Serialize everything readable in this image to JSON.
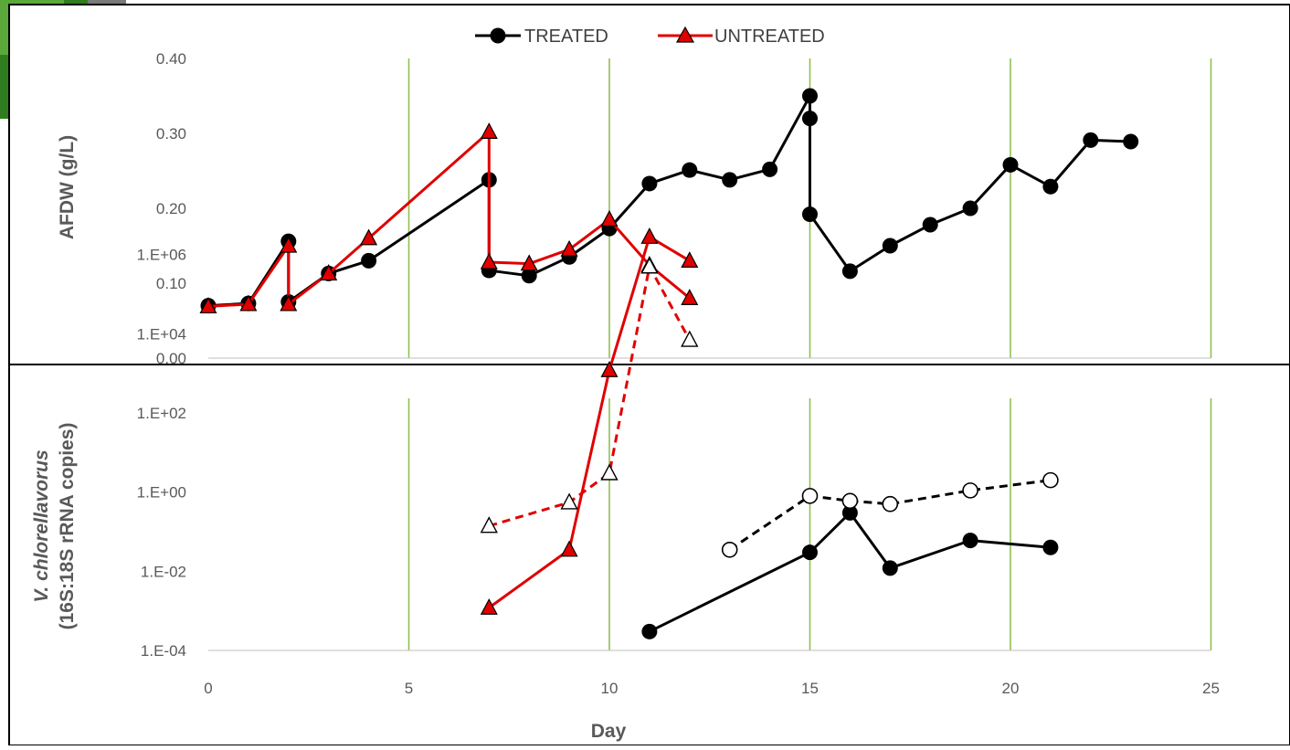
{
  "legend": {
    "treated_label": "TREATED",
    "untreated_label": "UNTREATED"
  },
  "colors": {
    "treated": "#000000",
    "untreated": "#e00000",
    "grid": "#92c050",
    "axis_text": "#595959"
  },
  "chart_data": [
    {
      "type": "line",
      "ylabel": "AFDW (g/L)",
      "xlim": [
        0,
        25
      ],
      "ylim": [
        0,
        0.4
      ],
      "yticks": [
        "0.00",
        "0.10",
        "0.20",
        "0.30",
        "0.40"
      ],
      "vertical_grid_x": [
        5,
        10,
        15,
        20,
        25
      ],
      "series": [
        {
          "name": "TREATED",
          "marker": "circle",
          "x": [
            0,
            1,
            2,
            2,
            3,
            4,
            7,
            7,
            8,
            9,
            10,
            11,
            12,
            13,
            14,
            15,
            15,
            15,
            16,
            17,
            18,
            19,
            20,
            21,
            22,
            23
          ],
          "y": [
            0.07,
            0.073,
            0.156,
            0.075,
            0.113,
            0.13,
            0.238,
            0.117,
            0.11,
            0.135,
            0.173,
            0.233,
            0.251,
            0.238,
            0.252,
            0.35,
            0.32,
            0.192,
            0.116,
            0.15,
            0.178,
            0.2,
            0.258,
            0.229,
            0.291,
            0.289
          ]
        },
        {
          "name": "UNTREATED",
          "marker": "triangle",
          "x": [
            0,
            1,
            2,
            2,
            3,
            4,
            7,
            7,
            8,
            9,
            10,
            11,
            12
          ],
          "y": [
            0.069,
            0.072,
            0.15,
            0.072,
            0.113,
            0.16,
            0.302,
            0.128,
            0.126,
            0.145,
            0.185,
            0.124,
            0.08
          ]
        }
      ]
    },
    {
      "type": "line",
      "ylabel_line1": "V. chlorellavorus",
      "ylabel_line2": "(16S:18S rRNA copies)",
      "xlabel": "Day",
      "yscale": "log",
      "xlim": [
        0,
        25
      ],
      "ylim": [
        0.0001,
        10000000
      ],
      "xticks": [
        "0",
        "5",
        "10",
        "15",
        "20",
        "25"
      ],
      "yticks": [
        "1.E-04",
        "1.E-02",
        "1.E+00",
        "1.E+02",
        "1.E+04",
        "1.E+06"
      ],
      "vertical_grid_x": [
        5,
        10,
        15,
        20,
        25
      ],
      "series": [
        {
          "marker": "triangle",
          "style": "solid",
          "color": "untreated",
          "x": [
            7,
            9,
            10,
            11,
            12
          ],
          "y": [
            0.0012,
            0.035,
            1200,
            2800000,
            700000
          ]
        },
        {
          "marker": "triangle-open",
          "style": "dashed",
          "color": "untreated",
          "x": [
            7,
            9,
            10,
            11,
            12
          ],
          "y": [
            0.14,
            0.55,
            3,
            500000,
            7000
          ]
        },
        {
          "marker": "circle",
          "style": "solid",
          "color": "treated",
          "x": [
            11,
            15,
            16,
            17,
            19,
            21
          ],
          "y": [
            0.0003,
            0.03,
            0.3,
            0.012,
            0.06,
            0.04
          ]
        },
        {
          "marker": "circle-open",
          "style": "dashed",
          "color": "treated",
          "x": [
            13,
            15,
            16,
            17,
            19,
            21
          ],
          "y": [
            0.035,
            0.8,
            0.6,
            0.5,
            1.1,
            2
          ]
        }
      ]
    }
  ]
}
